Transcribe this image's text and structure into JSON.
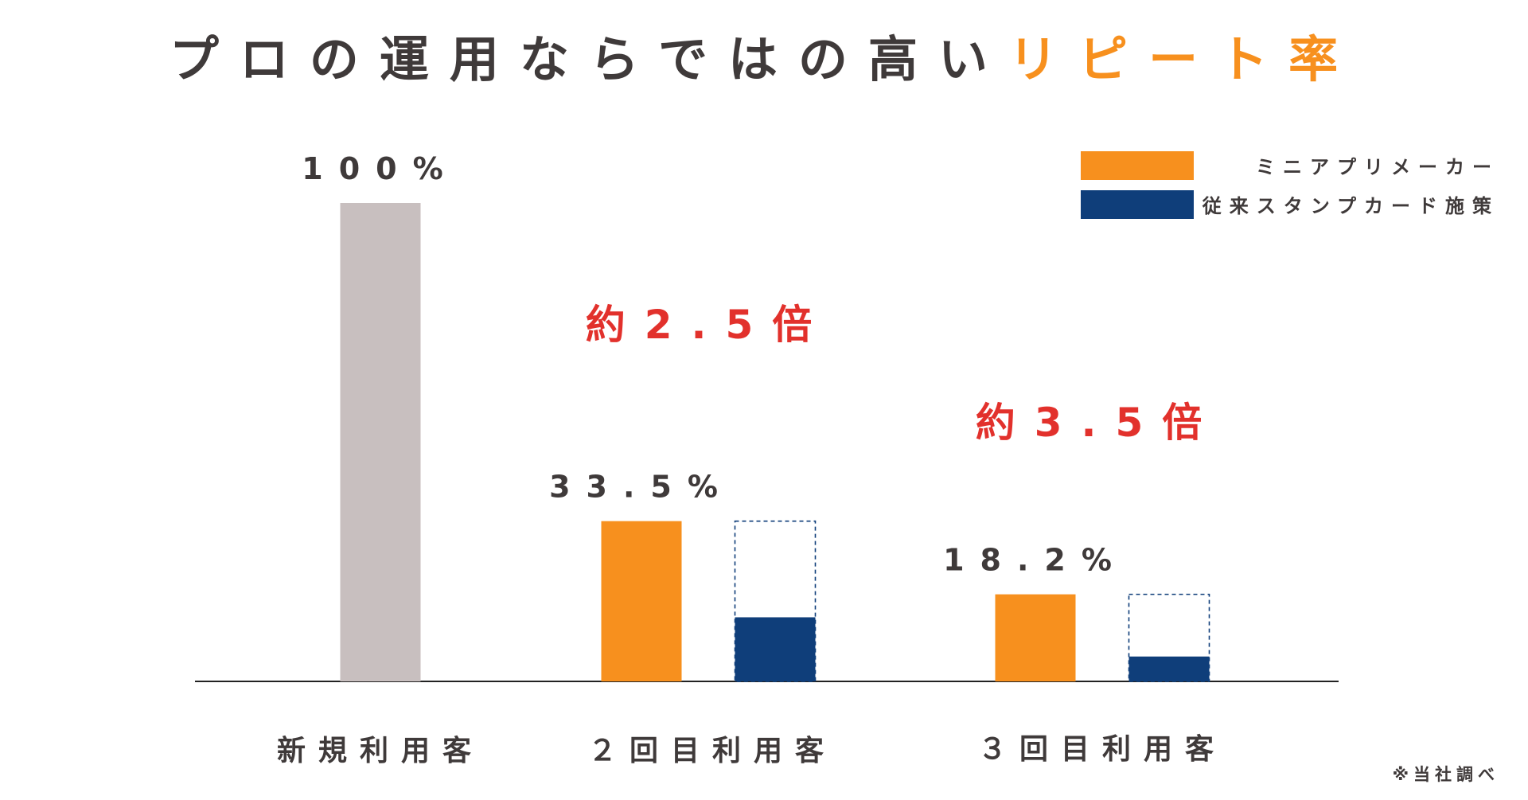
{
  "title": {
    "main": "プロの運用ならではの高い",
    "accent": "リピート率"
  },
  "colors": {
    "text": "#3f3a3a",
    "accent": "#f7901e",
    "mini_app": "#f7901e",
    "stamp_card": "#0f3e7a",
    "new_customer": "#c8bfbf",
    "multiplier": "#e2312c",
    "axis": "#222222"
  },
  "legend": {
    "items": [
      {
        "label": "ミニアプリメーカー",
        "color": "#f7901e"
      },
      {
        "label": "従来スタンプカード施策",
        "color": "#0f3e7a"
      }
    ]
  },
  "footnote": "※当社調べ",
  "chart_data": {
    "type": "bar",
    "title": "プロの運用ならではの高いリピート率",
    "categories": [
      "新規利用客",
      "２回目利用客",
      "３回目利用客"
    ],
    "ylim": [
      0,
      100
    ],
    "grid": false,
    "legend_position": "top-right",
    "bars": [
      {
        "category": "新規利用客",
        "series": "新規利用客",
        "value": 100,
        "label": "100%"
      },
      {
        "category": "２回目利用客",
        "series": "ミニアプリメーカー",
        "value": 33.5,
        "label": "33.5%"
      },
      {
        "category": "２回目利用客",
        "series": "従来スタンプカード施策",
        "value": 13.4,
        "outline_value": 33.5
      },
      {
        "category": "３回目利用客",
        "series": "ミニアプリメーカー",
        "value": 18.2,
        "label": "18.2%"
      },
      {
        "category": "３回目利用客",
        "series": "従来スタンプカード施策",
        "value": 5.2,
        "outline_value": 18.2
      }
    ],
    "annotations": [
      {
        "category": "２回目利用客",
        "text": "約2.5倍"
      },
      {
        "category": "３回目利用客",
        "text": "約3.5倍"
      }
    ]
  }
}
